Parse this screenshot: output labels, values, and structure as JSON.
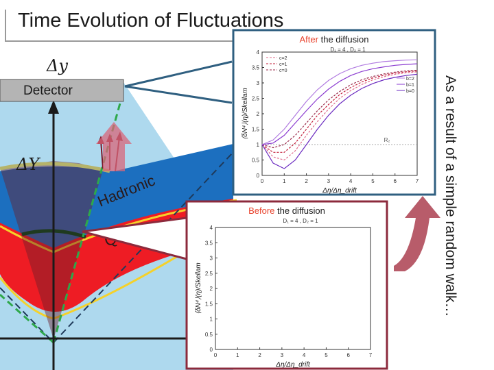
{
  "slide": {
    "title": "Time Evolution of Fluctuations",
    "side_caption": "As a result of a simple random walk…",
    "detector_label": "Detector",
    "delta_y_label": "Δy",
    "delta_Y_label": "ΔY",
    "hadronic_label": "Hadronic",
    "qgp_label": "QGP"
  },
  "colors": {
    "light_blue": "#aed9ee",
    "blue": "#1c6fbf",
    "red": "#ee1c24",
    "yellow": "#f5d12a",
    "plot_frame": "#2f5f80",
    "before_frame": "#8c2a3c",
    "arrow": "#b85c6a"
  },
  "chart_data": [
    {
      "type": "line",
      "panel": "after",
      "title_highlight": "After",
      "title_rest": " the diffusion",
      "params": "D₁ = 4 , D₂ = 1",
      "xlabel": "Δη/Δη_drift",
      "ylabel": "⟨δN⁴⟩(η)/Skellam",
      "xlim": [
        0,
        7
      ],
      "ylim": [
        0,
        4
      ],
      "xticks": [
        "0",
        "1",
        "2",
        "3",
        "4",
        "5",
        "6",
        "7"
      ],
      "yticks": [
        "0",
        "0.5",
        "1",
        "1.5",
        "2",
        "2.5",
        "3",
        "3.5",
        "4"
      ],
      "reference_line": {
        "y": 1,
        "label": "R₂"
      },
      "legend_c": [
        "c=2",
        "c=1",
        "c=0"
      ],
      "legend_b": [
        "b=2",
        "b=1",
        "b=0"
      ],
      "x": [
        0,
        0.5,
        1,
        1.5,
        2,
        2.5,
        3,
        3.5,
        4,
        4.5,
        5,
        5.5,
        6,
        6.5,
        7
      ],
      "series": [
        {
          "values": [
            1.0,
            0.6,
            0.5,
            0.8,
            1.3,
            1.75,
            2.15,
            2.5,
            2.75,
            2.95,
            3.1,
            3.2,
            3.28,
            3.33,
            3.36
          ]
        },
        {
          "values": [
            1.0,
            0.75,
            0.75,
            1.05,
            1.5,
            1.95,
            2.3,
            2.62,
            2.85,
            3.03,
            3.16,
            3.25,
            3.32,
            3.36,
            3.39
          ]
        },
        {
          "values": [
            1.0,
            0.9,
            1.0,
            1.3,
            1.7,
            2.1,
            2.45,
            2.72,
            2.94,
            3.1,
            3.21,
            3.29,
            3.35,
            3.39,
            3.41
          ]
        },
        {
          "values": [
            1.0,
            0.4,
            0.22,
            0.5,
            1.0,
            1.5,
            1.95,
            2.32,
            2.6,
            2.82,
            2.98,
            3.1,
            3.18,
            3.24,
            3.28
          ]
        },
        {
          "values": [
            1.0,
            1.05,
            1.3,
            1.7,
            2.1,
            2.48,
            2.8,
            3.05,
            3.24,
            3.37,
            3.46,
            3.52,
            3.57,
            3.6,
            3.62
          ]
        },
        {
          "values": [
            1.0,
            1.15,
            1.5,
            1.95,
            2.4,
            2.78,
            3.08,
            3.3,
            3.46,
            3.57,
            3.64,
            3.69,
            3.72,
            3.74,
            3.75
          ]
        }
      ]
    },
    {
      "type": "line",
      "panel": "before",
      "title_highlight": "Before",
      "title_rest": " the diffusion",
      "params": "D₁ = 4 , D₂ = 1",
      "xlabel": "Δη/Δη_drift",
      "ylabel": "⟨δN⁴⟩(η)/Skellam",
      "xlim": [
        0,
        7
      ],
      "ylim": [
        0,
        4
      ],
      "xticks": [
        "0",
        "1",
        "2",
        "3",
        "4",
        "5",
        "6",
        "7"
      ],
      "yticks": [
        "0",
        "0.5",
        "1",
        "1.5",
        "2",
        "2.5",
        "3",
        "3.5",
        "4"
      ],
      "series": []
    }
  ]
}
